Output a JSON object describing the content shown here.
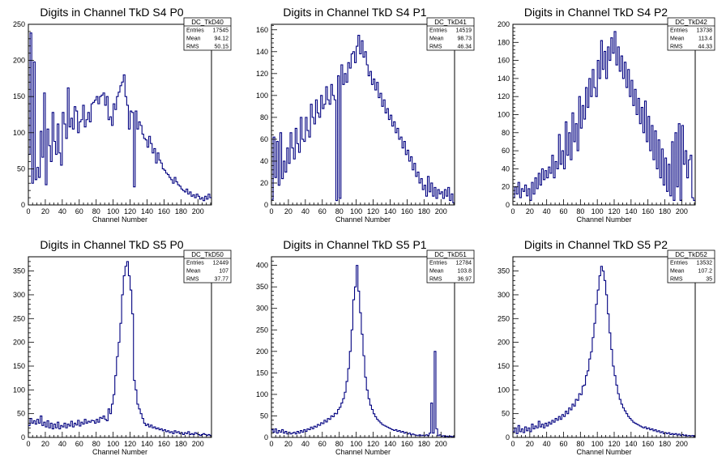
{
  "chart_data": [
    {
      "type": "histogram",
      "title": "Digits in Channel TkD S4 P0",
      "xlabel": "Channel Number",
      "ylabel": "",
      "xlim": [
        0,
        216
      ],
      "ylim": [
        0,
        250
      ],
      "xticks": [
        0,
        20,
        40,
        60,
        80,
        100,
        120,
        140,
        160,
        180,
        200
      ],
      "yticks": [
        0,
        50,
        100,
        150,
        200,
        250
      ],
      "stats": {
        "name": "DC_TkD40",
        "entries": "17545",
        "mean": "94.12",
        "rms": "50.15"
      },
      "bin_width": 2,
      "values": [
        70,
        238,
        30,
        198,
        35,
        52,
        38,
        102,
        66,
        155,
        28,
        105,
        82,
        60,
        128,
        88,
        70,
        112,
        72,
        55,
        128,
        112,
        92,
        162,
        108,
        120,
        105,
        136,
        130,
        100,
        115,
        118,
        138,
        108,
        118,
        128,
        115,
        140,
        142,
        145,
        150,
        140,
        150,
        152,
        155,
        138,
        150,
        118,
        122,
        110,
        140,
        132,
        150,
        156,
        165,
        170,
        180,
        150,
        138,
        105,
        130,
        128,
        25,
        130,
        105,
        115,
        110,
        98,
        92,
        90,
        80,
        95,
        85,
        72,
        78,
        58,
        72,
        62,
        58,
        50,
        48,
        44,
        42,
        38,
        35,
        30,
        38,
        32,
        28,
        26,
        22,
        20,
        18,
        22,
        15,
        18,
        12,
        14,
        10,
        15,
        12,
        8,
        10,
        6,
        12,
        8,
        15,
        10
      ]
    },
    {
      "type": "histogram",
      "title": "Digits in Channel TkD S4 P1",
      "xlabel": "Channel Number",
      "ylabel": "",
      "xlim": [
        0,
        216
      ],
      "ylim": [
        0,
        165
      ],
      "xticks": [
        0,
        20,
        40,
        60,
        80,
        100,
        120,
        140,
        160,
        180,
        200
      ],
      "yticks": [
        0,
        20,
        40,
        60,
        80,
        100,
        120,
        140,
        160
      ],
      "stats": {
        "name": "DC_TkD41",
        "entries": "14519",
        "mean": "98.73",
        "rms": "46.34"
      },
      "bin_width": 2,
      "values": [
        5,
        62,
        25,
        58,
        18,
        66,
        24,
        40,
        30,
        52,
        38,
        66,
        52,
        42,
        70,
        56,
        48,
        80,
        60,
        58,
        80,
        68,
        62,
        92,
        80,
        74,
        96,
        84,
        80,
        100,
        88,
        92,
        108,
        96,
        92,
        110,
        100,
        96,
        4,
        118,
        6,
        128,
        110,
        120,
        112,
        130,
        125,
        138,
        140,
        130,
        145,
        155,
        138,
        150,
        135,
        140,
        128,
        118,
        122,
        110,
        115,
        105,
        112,
        98,
        102,
        90,
        96,
        84,
        88,
        78,
        82,
        72,
        76,
        66,
        70,
        60,
        62,
        52,
        58,
        46,
        50,
        40,
        44,
        32,
        38,
        26,
        30,
        20,
        24,
        14,
        18,
        8,
        26,
        12,
        20,
        8,
        16,
        6,
        14,
        10,
        12,
        6,
        14,
        8,
        16,
        4,
        10,
        2
      ]
    },
    {
      "type": "histogram",
      "title": "Digits in Channel TkD S4 P2",
      "xlabel": "Channel Number",
      "ylabel": "",
      "xlim": [
        0,
        216
      ],
      "ylim": [
        0,
        200
      ],
      "xticks": [
        0,
        20,
        40,
        60,
        80,
        100,
        120,
        140,
        160,
        180,
        200
      ],
      "yticks": [
        0,
        20,
        40,
        60,
        80,
        100,
        120,
        140,
        160,
        180,
        200
      ],
      "stats": {
        "name": "DC_TkD42",
        "entries": "13738",
        "mean": "113.4",
        "rms": "44.33"
      },
      "bin_width": 2,
      "values": [
        8,
        20,
        12,
        25,
        8,
        18,
        15,
        22,
        10,
        18,
        5,
        25,
        12,
        30,
        18,
        35,
        22,
        40,
        28,
        38,
        30,
        42,
        35,
        55,
        30,
        48,
        40,
        78,
        45,
        60,
        40,
        92,
        55,
        80,
        50,
        102,
        70,
        90,
        60,
        120,
        85,
        110,
        95,
        130,
        108,
        140,
        120,
        150,
        130,
        120,
        160,
        140,
        182,
        150,
        170,
        140,
        175,
        160,
        185,
        168,
        192,
        155,
        175,
        148,
        165,
        140,
        158,
        130,
        150,
        120,
        138,
        110,
        128,
        100,
        118,
        90,
        108,
        80,
        115,
        70,
        98,
        60,
        88,
        50,
        82,
        40,
        72,
        30,
        62,
        22,
        52,
        15,
        45,
        10,
        70,
        5,
        80,
        20,
        90,
        5,
        88,
        45,
        60,
        30,
        50,
        55,
        8,
        5
      ]
    },
    {
      "type": "histogram",
      "title": "Digits in Channel TkD S5 P0",
      "xlabel": "Channel Number",
      "ylabel": "",
      "xlim": [
        0,
        216
      ],
      "ylim": [
        0,
        380
      ],
      "xticks": [
        0,
        20,
        40,
        60,
        80,
        100,
        120,
        140,
        160,
        180,
        200
      ],
      "yticks": [
        0,
        50,
        100,
        150,
        200,
        250,
        300,
        350
      ],
      "stats": {
        "name": "DC_TkD50",
        "entries": "12449",
        "mean": "107",
        "rms": "37.77"
      },
      "bin_width": 2,
      "values": [
        25,
        40,
        30,
        35,
        28,
        38,
        30,
        45,
        25,
        32,
        22,
        35,
        20,
        30,
        18,
        28,
        20,
        32,
        18,
        25,
        22,
        30,
        20,
        28,
        24,
        34,
        22,
        30,
        26,
        36,
        24,
        32,
        28,
        38,
        30,
        34,
        32,
        36,
        35,
        30,
        38,
        32,
        42,
        40,
        45,
        38,
        35,
        60,
        50,
        70,
        90,
        130,
        170,
        200,
        240,
        300,
        340,
        360,
        370,
        340,
        310,
        260,
        120,
        100,
        70,
        60,
        50,
        40,
        30,
        25,
        28,
        22,
        26,
        20,
        22,
        18,
        20,
        16,
        18,
        14,
        16,
        12,
        14,
        10,
        12,
        8,
        14,
        10,
        12,
        8,
        10,
        6,
        10,
        8,
        12,
        6,
        8,
        6,
        10,
        8,
        6,
        4,
        6,
        8,
        6,
        4,
        6,
        4
      ]
    },
    {
      "type": "histogram",
      "title": "Digits in Channel TkD S5 P1",
      "xlabel": "Channel Number",
      "ylabel": "",
      "xlim": [
        0,
        216
      ],
      "ylim": [
        0,
        420
      ],
      "xticks": [
        0,
        20,
        40,
        60,
        80,
        100,
        120,
        140,
        160,
        180,
        200
      ],
      "yticks": [
        0,
        50,
        100,
        150,
        200,
        250,
        300,
        350,
        400
      ],
      "stats": {
        "name": "DC_TkD51",
        "entries": "12784",
        "mean": "103.8",
        "rms": "36.97"
      },
      "bin_width": 2,
      "values": [
        18,
        12,
        20,
        10,
        16,
        12,
        18,
        10,
        14,
        8,
        12,
        8,
        10,
        12,
        8,
        14,
        10,
        16,
        12,
        18,
        14,
        20,
        18,
        24,
        20,
        26,
        24,
        30,
        28,
        34,
        32,
        40,
        36,
        44,
        42,
        50,
        48,
        56,
        55,
        65,
        70,
        80,
        90,
        105,
        130,
        160,
        200,
        250,
        320,
        350,
        400,
        340,
        290,
        240,
        190,
        140,
        110,
        90,
        75,
        65,
        55,
        48,
        42,
        38,
        34,
        30,
        28,
        26,
        24,
        22,
        20,
        18,
        16,
        18,
        14,
        16,
        12,
        14,
        10,
        12,
        8,
        10,
        6,
        8,
        6,
        5,
        4,
        6,
        4,
        5,
        4,
        6,
        4,
        10,
        80,
        10,
        200,
        20,
        4,
        6,
        3,
        4,
        2,
        3,
        2,
        3,
        2,
        2
      ]
    },
    {
      "type": "histogram",
      "title": "Digits in Channel TkD S5 P2",
      "xlabel": "Channel Number",
      "ylabel": "",
      "xlim": [
        0,
        216
      ],
      "ylim": [
        0,
        380
      ],
      "xticks": [
        0,
        20,
        40,
        60,
        80,
        100,
        120,
        140,
        160,
        180,
        200
      ],
      "yticks": [
        0,
        50,
        100,
        150,
        200,
        250,
        300,
        350
      ],
      "stats": {
        "name": "DC_TkD52",
        "entries": "13532",
        "mean": "107.2",
        "rms": "35"
      },
      "bin_width": 2,
      "values": [
        12,
        20,
        8,
        25,
        12,
        18,
        10,
        22,
        14,
        20,
        12,
        28,
        18,
        24,
        20,
        34,
        22,
        28,
        20,
        30,
        24,
        32,
        28,
        36,
        32,
        40,
        36,
        44,
        38,
        48,
        44,
        55,
        50,
        62,
        58,
        70,
        66,
        80,
        78,
        92,
        90,
        108,
        110,
        130,
        140,
        165,
        180,
        210,
        240,
        280,
        310,
        340,
        360,
        350,
        330,
        300,
        260,
        220,
        185,
        150,
        130,
        110,
        92,
        80,
        70,
        62,
        56,
        50,
        44,
        40,
        36,
        32,
        30,
        28,
        26,
        24,
        22,
        20,
        22,
        18,
        20,
        16,
        18,
        14,
        16,
        12,
        14,
        10,
        12,
        8,
        10,
        8,
        10,
        6,
        8,
        6,
        8,
        5,
        7,
        4,
        6,
        4,
        5,
        3,
        4,
        3,
        4,
        2
      ]
    }
  ]
}
